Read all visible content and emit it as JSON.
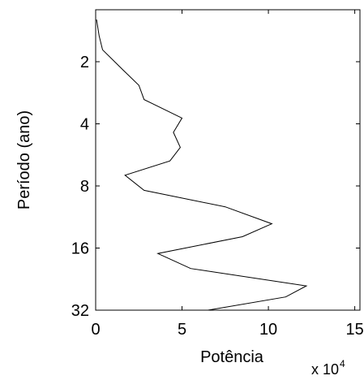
{
  "chart_data": {
    "type": "line",
    "xlabel": "Potência",
    "ylabel": "Período (ano)",
    "x_multiplier_base": "x 10",
    "x_multiplier_exp": "4",
    "x_ticks": [
      0,
      5,
      10,
      15
    ],
    "x_tick_labels": [
      "0",
      "5",
      "10",
      "15"
    ],
    "xlim": [
      0,
      15.3
    ],
    "y_scale": "log2",
    "y_ticks": [
      2,
      4,
      8,
      16,
      32
    ],
    "y_tick_labels": [
      "2",
      "4",
      "8",
      "16",
      "32"
    ],
    "ylim": [
      1.12,
      32
    ],
    "y_inverted": true,
    "line_color": "#000000",
    "series": [
      {
        "x": [
          0.05,
          0.2,
          0.4,
          1.6,
          2.5,
          2.8,
          5.0,
          4.5,
          4.9,
          4.3,
          1.7,
          2.8,
          7.5,
          10.2,
          8.5,
          3.6,
          5.5,
          12.2,
          11.0,
          6.5
        ],
        "y": [
          1.25,
          1.5,
          1.75,
          2.2,
          2.6,
          3.05,
          3.75,
          4.4,
          5.2,
          6.05,
          7.1,
          8.4,
          10.1,
          12.2,
          14.1,
          17.0,
          20.1,
          24.4,
          27.6,
          32.0
        ]
      }
    ]
  }
}
